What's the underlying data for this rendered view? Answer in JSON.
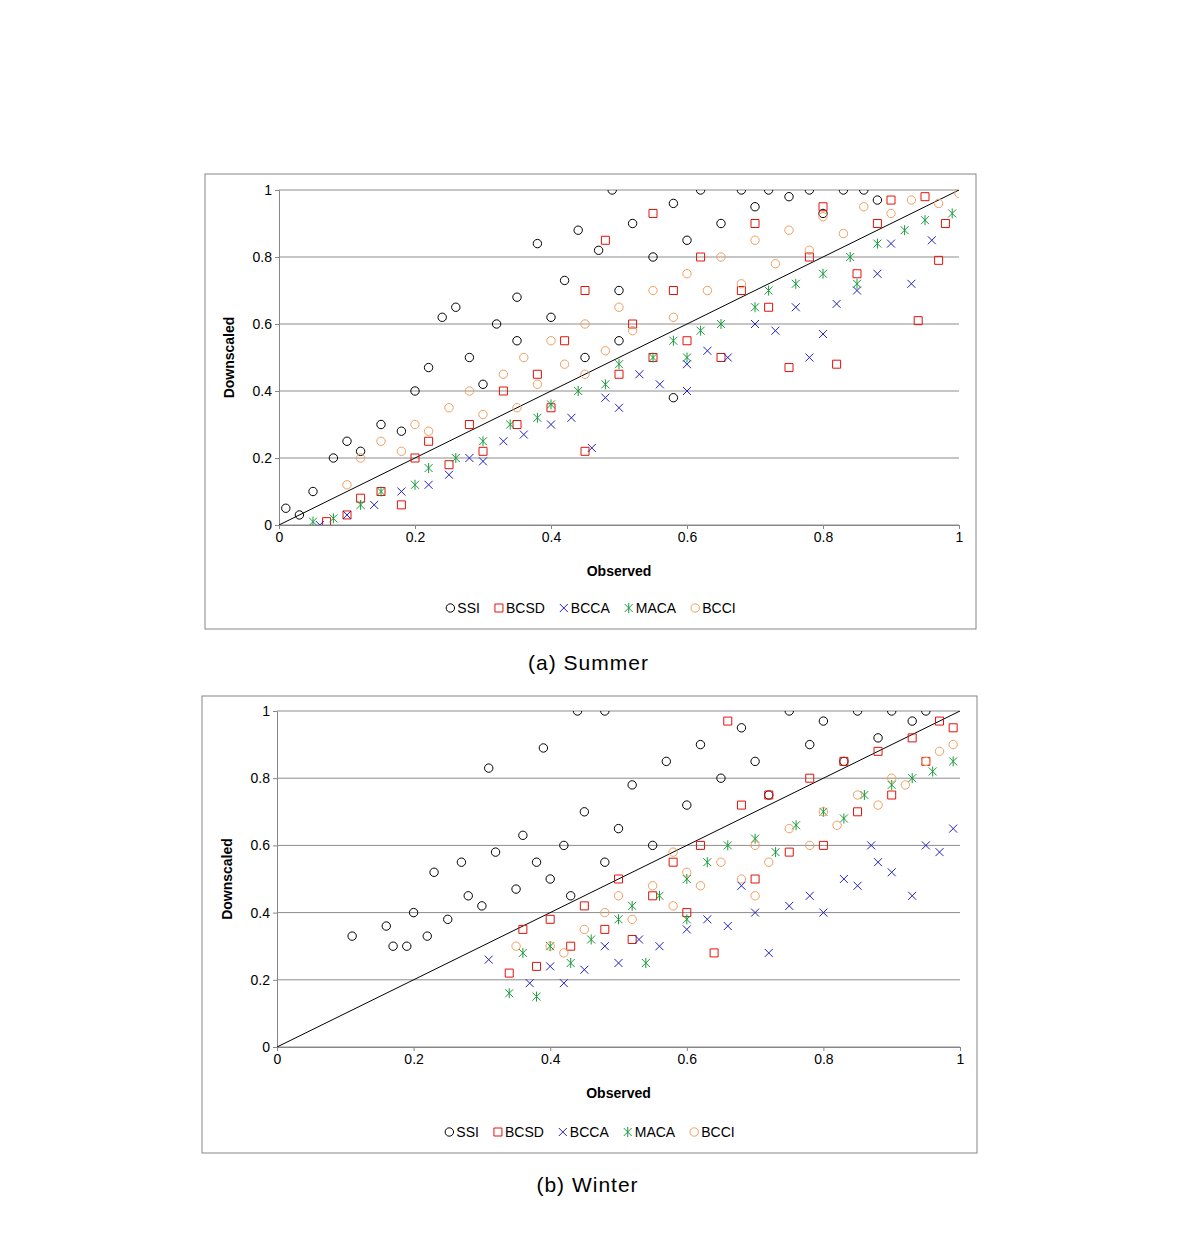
{
  "chart_data": [
    {
      "type": "scatter",
      "title": "(a) Summer",
      "x_label": "Observed",
      "y_label": "Downscaled",
      "xlim": [
        0,
        1
      ],
      "ylim": [
        0,
        1
      ],
      "xticks": [
        0,
        0.2,
        0.4,
        0.6,
        0.8,
        1
      ],
      "yticks": [
        0,
        0.2,
        0.4,
        0.6,
        0.8,
        1
      ],
      "grid": true,
      "legend": "bottom",
      "series": [
        {
          "name": "SSI",
          "color": "#000000",
          "marker": "circle",
          "x": [
            0.01,
            0.03,
            0.05,
            0.08,
            0.1,
            0.12,
            0.15,
            0.18,
            0.2,
            0.22,
            0.24,
            0.26,
            0.28,
            0.3,
            0.32,
            0.35,
            0.38,
            0.4,
            0.42,
            0.44,
            0.47,
            0.49,
            0.5,
            0.52,
            0.55,
            0.58,
            0.6,
            0.62,
            0.65,
            0.68,
            0.7,
            0.72,
            0.75,
            0.78,
            0.8,
            0.83,
            0.86,
            0.88,
            0.5,
            0.58,
            0.35,
            0.45
          ],
          "values": [
            0.05,
            0.03,
            0.1,
            0.2,
            0.25,
            0.22,
            0.3,
            0.28,
            0.4,
            0.47,
            0.62,
            0.65,
            0.5,
            0.42,
            0.6,
            0.68,
            0.84,
            0.62,
            0.73,
            0.88,
            0.82,
            1,
            0.7,
            0.9,
            0.8,
            0.96,
            0.85,
            1,
            0.9,
            1,
            0.95,
            1,
            0.98,
            1,
            0.93,
            1,
            1,
            0.97,
            0.55,
            0.38,
            0.55,
            0.5
          ]
        },
        {
          "name": "BCSD",
          "color": "#e3120b",
          "marker": "square",
          "x": [
            0.07,
            0.1,
            0.12,
            0.15,
            0.18,
            0.2,
            0.22,
            0.25,
            0.28,
            0.3,
            0.33,
            0.35,
            0.38,
            0.4,
            0.42,
            0.45,
            0.45,
            0.48,
            0.5,
            0.52,
            0.55,
            0.55,
            0.58,
            0.6,
            0.62,
            0.65,
            0.68,
            0.7,
            0.72,
            0.75,
            0.78,
            0.8,
            0.82,
            0.85,
            0.88,
            0.9,
            0.94,
            0.97,
            0.98,
            0.95
          ],
          "values": [
            0.01,
            0.03,
            0.08,
            0.1,
            0.06,
            0.2,
            0.25,
            0.18,
            0.3,
            0.22,
            0.4,
            0.3,
            0.45,
            0.35,
            0.55,
            0.22,
            0.7,
            0.85,
            0.45,
            0.6,
            0.5,
            0.93,
            0.7,
            0.55,
            0.8,
            0.5,
            0.7,
            0.9,
            0.65,
            0.47,
            0.8,
            0.95,
            0.48,
            0.75,
            0.9,
            0.97,
            0.61,
            0.79,
            0.9,
            0.98
          ]
        },
        {
          "name": "BCCA",
          "color": "#2020c8",
          "marker": "x",
          "x": [
            0.06,
            0.1,
            0.14,
            0.18,
            0.22,
            0.25,
            0.28,
            0.3,
            0.33,
            0.36,
            0.4,
            0.43,
            0.46,
            0.48,
            0.5,
            0.53,
            0.56,
            0.6,
            0.63,
            0.66,
            0.7,
            0.73,
            0.76,
            0.8,
            0.82,
            0.85,
            0.88,
            0.9,
            0.93,
            0.96,
            0.78,
            0.6
          ],
          "values": [
            0,
            0.03,
            0.06,
            0.1,
            0.12,
            0.15,
            0.2,
            0.19,
            0.25,
            0.27,
            0.3,
            0.32,
            0.23,
            0.38,
            0.35,
            0.45,
            0.42,
            0.48,
            0.52,
            0.5,
            0.6,
            0.58,
            0.65,
            0.57,
            0.66,
            0.7,
            0.75,
            0.84,
            0.72,
            0.85,
            0.5,
            0.4
          ]
        },
        {
          "name": "MACA",
          "color": "#1a9a3c",
          "marker": "asterisk",
          "x": [
            0.05,
            0.08,
            0.12,
            0.15,
            0.2,
            0.22,
            0.26,
            0.3,
            0.34,
            0.38,
            0.4,
            0.44,
            0.48,
            0.5,
            0.55,
            0.58,
            0.62,
            0.65,
            0.7,
            0.72,
            0.76,
            0.8,
            0.84,
            0.88,
            0.92,
            0.95,
            0.99,
            0.85,
            0.6
          ],
          "values": [
            0.01,
            0.02,
            0.06,
            0.1,
            0.12,
            0.17,
            0.2,
            0.25,
            0.3,
            0.32,
            0.36,
            0.4,
            0.42,
            0.48,
            0.5,
            0.55,
            0.58,
            0.6,
            0.65,
            0.7,
            0.72,
            0.75,
            0.8,
            0.84,
            0.88,
            0.91,
            0.93,
            0.72,
            0.5
          ]
        },
        {
          "name": "BCCI",
          "color": "#f0a060",
          "marker": "circle",
          "x": [
            0.1,
            0.12,
            0.15,
            0.18,
            0.2,
            0.22,
            0.25,
            0.28,
            0.3,
            0.33,
            0.36,
            0.38,
            0.4,
            0.42,
            0.45,
            0.48,
            0.5,
            0.52,
            0.55,
            0.58,
            0.6,
            0.63,
            0.65,
            0.68,
            0.7,
            0.73,
            0.75,
            0.78,
            0.8,
            0.83,
            0.86,
            0.9,
            0.93,
            0.97,
            1,
            0.45,
            0.35
          ],
          "values": [
            0.12,
            0.2,
            0.25,
            0.22,
            0.3,
            0.28,
            0.35,
            0.4,
            0.33,
            0.45,
            0.5,
            0.42,
            0.55,
            0.48,
            0.6,
            0.52,
            0.65,
            0.58,
            0.7,
            0.62,
            0.75,
            0.7,
            0.8,
            0.72,
            0.85,
            0.78,
            0.88,
            0.82,
            0.92,
            0.87,
            0.95,
            0.93,
            0.97,
            0.96,
            0.99,
            0.45,
            0.35
          ]
        }
      ]
    },
    {
      "type": "scatter",
      "title": "(b) Winter",
      "x_label": "Observed",
      "y_label": "Downscaled",
      "xlim": [
        0,
        1
      ],
      "ylim": [
        0,
        1
      ],
      "xticks": [
        0,
        0.2,
        0.4,
        0.6,
        0.8,
        1
      ],
      "yticks": [
        0,
        0.2,
        0.4,
        0.6,
        0.8,
        1
      ],
      "grid": true,
      "legend": "bottom",
      "series": [
        {
          "name": "SSI",
          "color": "#000000",
          "marker": "circle",
          "x": [
            0.11,
            0.16,
            0.17,
            0.19,
            0.2,
            0.22,
            0.23,
            0.25,
            0.27,
            0.28,
            0.3,
            0.31,
            0.32,
            0.35,
            0.36,
            0.38,
            0.39,
            0.4,
            0.42,
            0.43,
            0.44,
            0.45,
            0.48,
            0.48,
            0.5,
            0.52,
            0.55,
            0.57,
            0.6,
            0.62,
            0.65,
            0.68,
            0.7,
            0.72,
            0.75,
            0.78,
            0.8,
            0.83,
            0.85,
            0.88,
            0.9,
            0.93,
            0.95
          ],
          "values": [
            0.33,
            0.36,
            0.3,
            0.3,
            0.4,
            0.33,
            0.52,
            0.38,
            0.55,
            0.45,
            0.42,
            0.83,
            0.58,
            0.47,
            0.63,
            0.55,
            0.89,
            0.5,
            0.6,
            0.45,
            1,
            0.7,
            0.55,
            1,
            0.65,
            0.78,
            0.6,
            0.85,
            0.72,
            0.9,
            0.8,
            0.95,
            0.85,
            0.75,
            1,
            0.9,
            0.97,
            0.85,
            1,
            0.92,
            1,
            0.97,
            1
          ]
        },
        {
          "name": "BCSD",
          "color": "#e3120b",
          "marker": "square",
          "x": [
            0.34,
            0.36,
            0.38,
            0.4,
            0.43,
            0.45,
            0.48,
            0.5,
            0.52,
            0.55,
            0.58,
            0.6,
            0.62,
            0.64,
            0.66,
            0.68,
            0.7,
            0.72,
            0.75,
            0.78,
            0.8,
            0.83,
            0.85,
            0.88,
            0.9,
            0.93,
            0.95,
            0.97,
            0.99
          ],
          "values": [
            0.22,
            0.35,
            0.24,
            0.38,
            0.3,
            0.42,
            0.35,
            0.5,
            0.32,
            0.45,
            0.55,
            0.4,
            0.6,
            0.28,
            0.97,
            0.72,
            0.5,
            0.75,
            0.58,
            0.8,
            0.6,
            0.85,
            0.7,
            0.88,
            0.75,
            0.92,
            0.85,
            0.97,
            0.95
          ]
        },
        {
          "name": "BCCA",
          "color": "#2020c8",
          "marker": "x",
          "x": [
            0.31,
            0.37,
            0.4,
            0.42,
            0.45,
            0.48,
            0.5,
            0.53,
            0.56,
            0.6,
            0.63,
            0.66,
            0.7,
            0.72,
            0.75,
            0.78,
            0.8,
            0.83,
            0.85,
            0.88,
            0.9,
            0.93,
            0.95,
            0.97,
            0.99,
            0.87,
            0.68
          ],
          "values": [
            0.26,
            0.19,
            0.24,
            0.19,
            0.23,
            0.3,
            0.25,
            0.32,
            0.3,
            0.35,
            0.38,
            0.36,
            0.4,
            0.28,
            0.42,
            0.45,
            0.4,
            0.5,
            0.48,
            0.55,
            0.52,
            0.45,
            0.6,
            0.58,
            0.65,
            0.6,
            0.48
          ]
        },
        {
          "name": "MACA",
          "color": "#1a9a3c",
          "marker": "asterisk",
          "x": [
            0.34,
            0.36,
            0.38,
            0.4,
            0.43,
            0.46,
            0.5,
            0.52,
            0.54,
            0.56,
            0.6,
            0.63,
            0.66,
            0.7,
            0.73,
            0.76,
            0.8,
            0.83,
            0.86,
            0.9,
            0.93,
            0.96,
            0.99,
            0.6
          ],
          "values": [
            0.16,
            0.28,
            0.15,
            0.3,
            0.25,
            0.32,
            0.38,
            0.42,
            0.25,
            0.45,
            0.5,
            0.55,
            0.6,
            0.62,
            0.58,
            0.66,
            0.7,
            0.68,
            0.75,
            0.78,
            0.8,
            0.82,
            0.85,
            0.38
          ]
        },
        {
          "name": "BCCI",
          "color": "#f0a060",
          "marker": "circle",
          "x": [
            0.35,
            0.4,
            0.42,
            0.45,
            0.48,
            0.5,
            0.52,
            0.55,
            0.58,
            0.6,
            0.62,
            0.65,
            0.68,
            0.7,
            0.72,
            0.75,
            0.78,
            0.8,
            0.82,
            0.85,
            0.88,
            0.9,
            0.92,
            0.95,
            0.97,
            0.99,
            0.7,
            0.58
          ],
          "values": [
            0.3,
            0.3,
            0.28,
            0.35,
            0.4,
            0.45,
            0.38,
            0.48,
            0.42,
            0.52,
            0.48,
            0.55,
            0.5,
            0.6,
            0.55,
            0.65,
            0.6,
            0.7,
            0.66,
            0.75,
            0.72,
            0.8,
            0.78,
            0.85,
            0.88,
            0.9,
            0.45,
            0.58
          ]
        }
      ]
    }
  ]
}
